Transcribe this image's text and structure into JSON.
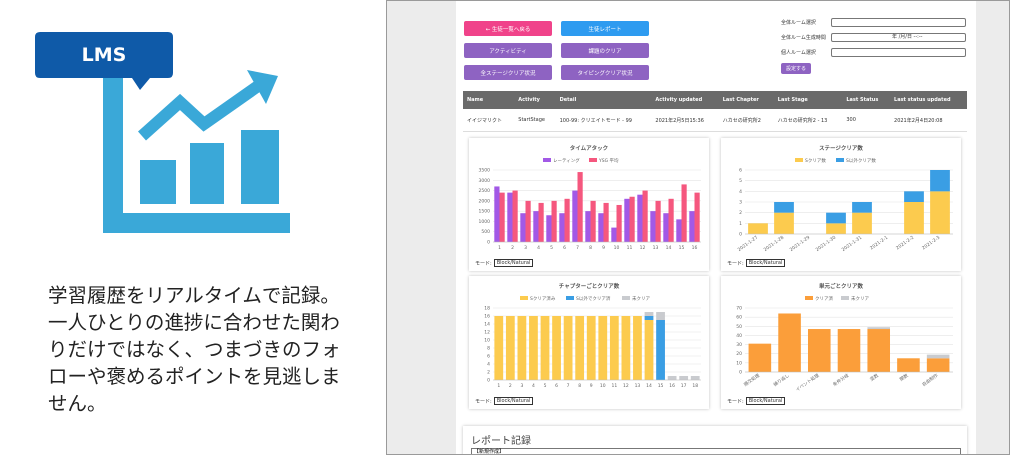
{
  "badge": "LMS",
  "description": "学習履歴をリアルタイムで記録。一人ひとりの進捗に合わせた関わりだけではなく、つまづきのフォローや褒めるポイントを見逃しません。",
  "screenshot": {
    "buttons": [
      {
        "label": "← 生徒一覧へ戻る",
        "color": "#f0438a"
      },
      {
        "label": "生徒レポート",
        "color": "#2e9bf0"
      },
      {
        "label": "アクティビティ",
        "color": "#8e63c2"
      },
      {
        "label": "課題のクリア",
        "color": "#8e63c2"
      },
      {
        "label": "全ステージクリア状況",
        "color": "#8e63c2"
      },
      {
        "label": "タイピングクリア状況",
        "color": "#8e63c2"
      }
    ],
    "form": {
      "labels": [
        "全体ルーム選択",
        "全体ルーム生成時間",
        "個人ルーム選択"
      ],
      "date_placeholder": "年 /月/日 --:--",
      "submit": "設定する"
    },
    "table": {
      "headers": [
        "Name",
        "Activity",
        "Detail",
        "Activity updated",
        "Last Chapter",
        "Last Stage",
        "Last Status",
        "Last status updated"
      ],
      "rows": [
        [
          "イイジマリクト",
          "StartStage",
          "100-99: クリエイトモード - 99",
          "2021年2月5日15:36",
          "ハカセの研究所2",
          "ハカセの研究所2 - 13",
          "300",
          "2021年2月4日20:08"
        ]
      ]
    },
    "mode_label": "モード:",
    "mode_option": "Block/Natural",
    "report_title": "レポート記録",
    "report_option": "【新規作成】"
  },
  "chart_data": [
    {
      "type": "bar",
      "title": "タイムアタック",
      "categories": [
        "1",
        "2",
        "3",
        "4",
        "5",
        "6",
        "7",
        "8",
        "9",
        "10",
        "11",
        "12",
        "13",
        "14",
        "15",
        "16"
      ],
      "series": [
        {
          "name": "レーティング",
          "color": "#a259e6",
          "values": [
            2700,
            2400,
            1400,
            1500,
            1300,
            1400,
            2500,
            1500,
            1400,
            700,
            2100,
            2300,
            1500,
            1400,
            1100,
            1500
          ]
        },
        {
          "name": "YSG 平均",
          "color": "#f5577e",
          "values": [
            2400,
            2500,
            2000,
            1900,
            2000,
            2100,
            3400,
            2000,
            1900,
            1800,
            2200,
            2500,
            2000,
            2100,
            2800,
            2400
          ]
        }
      ],
      "ylim": [
        0,
        3500
      ],
      "yticks": [
        0,
        500,
        1000,
        1500,
        2000,
        2500,
        3000,
        3500
      ],
      "grid": true
    },
    {
      "type": "stacked_bar",
      "title": "ステージクリア数",
      "categories": [
        "2021-1-27",
        "2021-1-28",
        "2021-1-29",
        "2021-1-30",
        "2021-1-31",
        "2021-2-1",
        "2021-2-2",
        "2021-2-3"
      ],
      "series": [
        {
          "name": "Sクリア数",
          "color": "#fccb4e",
          "values": [
            1,
            2,
            0,
            1,
            2,
            0,
            3,
            4
          ]
        },
        {
          "name": "S以外クリア数",
          "color": "#3a9ee4",
          "values": [
            0,
            1,
            0,
            1,
            1,
            0,
            1,
            2
          ]
        }
      ],
      "ylim": [
        0,
        6
      ],
      "yticks": [
        0,
        1,
        2,
        3,
        4,
        5,
        6
      ],
      "grid": true
    },
    {
      "type": "stacked_bar",
      "title": "チャプターごとクリア数",
      "categories": [
        "1",
        "2",
        "3",
        "4",
        "5",
        "6",
        "7",
        "8",
        "9",
        "10",
        "11",
        "12",
        "13",
        "14",
        "15",
        "16",
        "17",
        "18"
      ],
      "series": [
        {
          "name": "Sクリア済み",
          "color": "#fccb4e",
          "values": [
            16,
            16,
            16,
            16,
            16,
            16,
            16,
            16,
            16,
            16,
            16,
            16,
            16,
            15,
            0,
            0,
            0,
            0
          ]
        },
        {
          "name": "S以外でクリア済",
          "color": "#3a9ee4",
          "values": [
            0,
            0,
            0,
            0,
            0,
            0,
            0,
            0,
            0,
            0,
            0,
            0,
            0,
            1,
            15,
            0,
            0,
            0
          ]
        },
        {
          "name": "未クリア",
          "color": "#c9cbcf",
          "values": [
            0,
            0,
            0,
            0,
            0,
            0,
            0,
            0,
            0,
            0,
            0,
            0,
            0,
            1,
            2,
            1,
            1,
            1
          ]
        }
      ],
      "ylim": [
        0,
        18
      ],
      "yticks": [
        0,
        2,
        4,
        6,
        8,
        10,
        12,
        14,
        16,
        18
      ],
      "grid": true
    },
    {
      "type": "stacked_bar",
      "title": "単元ごとクリア数",
      "categories": [
        "順次処理",
        "繰り返し",
        "イベント処理",
        "条件分岐",
        "変数",
        "関数",
        "自由制作"
      ],
      "series": [
        {
          "name": "クリア済",
          "color": "#fb9e3a",
          "values": [
            31,
            64,
            47,
            47,
            47,
            15,
            15
          ]
        },
        {
          "name": "未クリア",
          "color": "#c9cbcf",
          "values": [
            0,
            0,
            0,
            0,
            2,
            0,
            4
          ]
        }
      ],
      "ylim": [
        0,
        70
      ],
      "yticks": [
        0,
        10,
        20,
        30,
        40,
        50,
        60,
        70
      ],
      "grid": true
    }
  ]
}
